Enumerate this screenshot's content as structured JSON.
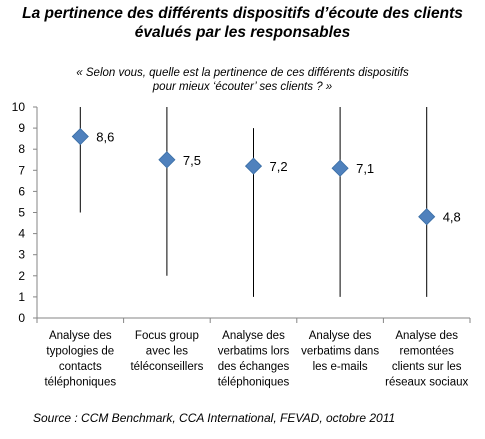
{
  "title_line1": "La pertinence des différents dispositifs d’écoute des clients",
  "title_line2": "évalués par les responsables",
  "subtitle_line1": "« Selon vous, quelle est la pertinence de ces différents dispositifs",
  "subtitle_line2": "pour mieux ‘écouter’ ses clients ? »",
  "source": "Source : CCM Benchmark, CCA International, FEVAD, octobre 2011",
  "colors": {
    "marker": "#4f81bd",
    "whisker": "#000000",
    "axis": "#868686"
  },
  "chart_data": {
    "type": "high-low-point",
    "ylim": [
      0,
      10
    ],
    "yticks": [
      0,
      1,
      2,
      3,
      4,
      5,
      6,
      7,
      8,
      9,
      10
    ],
    "grid": false,
    "categories": [
      [
        "Analyse des",
        "typologies de",
        "contacts",
        "téléphoniques"
      ],
      [
        "Focus group",
        "avec les",
        "téléconseillers"
      ],
      [
        "Analyse des",
        "verbatims lors",
        "des échanges",
        "téléphoniques"
      ],
      [
        "Analyse des",
        "verbatims dans",
        "les e-mails"
      ],
      [
        "Analyse des",
        "remontées",
        "clients sur les",
        "réseaux sociaux"
      ]
    ],
    "values": [
      8.6,
      7.5,
      7.2,
      7.1,
      4.8
    ],
    "value_labels": [
      "8,6",
      "7,5",
      "7,2",
      "7,1",
      "4,8"
    ],
    "low": [
      5,
      2,
      1,
      1,
      1
    ],
    "high": [
      10,
      10,
      9,
      10,
      10
    ]
  }
}
